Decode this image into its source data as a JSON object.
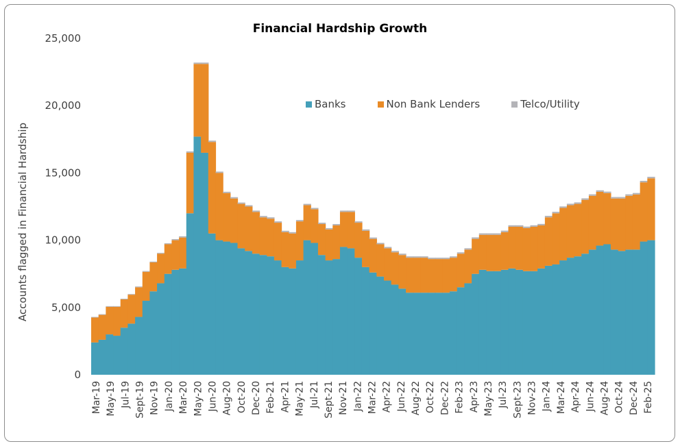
{
  "chart_data": {
    "type": "area",
    "stacked": true,
    "title": "Financial Hardship Growth",
    "xlabel": "",
    "ylabel": "Accounts flagged in Financial Hardship",
    "ylim": [
      0,
      25000
    ],
    "yticks": [
      0,
      5000,
      10000,
      15000,
      20000,
      25000
    ],
    "ytick_labels": [
      "0",
      "5,000",
      "10,000",
      "15,000",
      "20,000",
      "25,000"
    ],
    "xtick_labels": [
      "Mar-19",
      "May-19",
      "Jul-19",
      "Sept-19",
      "Nov-19",
      "Jan-20",
      "Mar-20",
      "May-20",
      "Jun-20",
      "Aug-20",
      "Oct-20",
      "Dec-20",
      "Feb-21",
      "Apr-21",
      "May-21",
      "Jul-21",
      "Sept-21",
      "Nov-21",
      "Jan-22",
      "Mar-22",
      "Apr-22",
      "Jun-22",
      "Aug-22",
      "Oct-22",
      "Dec-22",
      "Feb-23",
      "Apr-23",
      "May-23",
      "Jul-23",
      "Sept-23",
      "Nov-23",
      "Jan-24",
      "Mar-24",
      "Apr-24",
      "Jun-24",
      "Aug-24",
      "Oct-24",
      "Dec-24",
      "Feb-25"
    ],
    "legend": {
      "position": "top-right",
      "entries": [
        "Banks",
        "Non Bank Lenders",
        "Telco/Utility"
      ]
    },
    "colors": {
      "Banks": "#449fb9",
      "Non Bank Lenders": "#e98b27",
      "Telco/Utility": "#b4b4b8"
    },
    "grid": false,
    "x": [
      "Mar-19",
      "Apr-19",
      "May-19",
      "Jun-19",
      "Jul-19",
      "Aug-19",
      "Sept-19",
      "Oct-19",
      "Nov-19",
      "Dec-19",
      "Jan-20",
      "Feb-20",
      "Mar-20",
      "Apr-20 (a)",
      "Apr-20 (b)",
      "May-20 (a)",
      "May-20 (b)",
      "May-20 (c)",
      "Jun-20 (a)",
      "Jun-20 (b)",
      "Jul-20",
      "Aug-20",
      "Sept-20",
      "Oct-20",
      "Nov-20",
      "Dec-20",
      "Jan-21",
      "Feb-21",
      "Mar-21",
      "Apr-21",
      "May-21",
      "Jun-21",
      "Jul-21",
      "Aug-21",
      "Sept-21",
      "Oct-21",
      "Nov-21",
      "Dec-21",
      "Jan-22",
      "Feb-22",
      "Mar-22",
      "Apr-22",
      "May-22",
      "Jun-22",
      "Jul-22",
      "Aug-22",
      "Sept-22",
      "Oct-22",
      "Nov-22",
      "Dec-22",
      "Jan-23",
      "Feb-23",
      "Mar-23",
      "Apr-23",
      "May-23",
      "Jun-23",
      "Jul-23",
      "Aug-23",
      "Sept-23",
      "Oct-23",
      "Nov-23",
      "Dec-23",
      "Jan-24",
      "Feb-24",
      "Mar-24",
      "Apr-24",
      "May-24",
      "Jun-24",
      "Jul-24",
      "Aug-24",
      "Sept-24",
      "Oct-24",
      "Nov-24",
      "Dec-24",
      "Jan-25",
      "Feb-25",
      "Mar-25"
    ],
    "series": [
      {
        "name": "Banks",
        "values": [
          2400,
          2600,
          3000,
          2900,
          3500,
          3800,
          4300,
          5500,
          6200,
          6800,
          7500,
          7800,
          7900,
          12000,
          17700,
          16500,
          10500,
          10000,
          9900,
          9800,
          9400,
          9200,
          9000,
          8900,
          8800,
          8500,
          8000,
          7900,
          8500,
          10000,
          9800,
          8900,
          8500,
          8600,
          9500,
          9400,
          8700,
          8000,
          7600,
          7300,
          7000,
          6700,
          6400,
          6100,
          6100,
          6100,
          6100,
          6100,
          6100,
          6200,
          6500,
          6800,
          7500,
          7800,
          7700,
          7700,
          7800,
          7900,
          7800,
          7700,
          7700,
          7900,
          8100,
          8200,
          8500,
          8700,
          8800,
          9000,
          9300,
          9600,
          9700,
          9300,
          9200,
          9300,
          9300,
          9900,
          10000
        ]
      },
      {
        "name": "Non Bank Lenders",
        "values": [
          1850,
          1850,
          2050,
          2150,
          2100,
          2150,
          2200,
          2150,
          2150,
          2200,
          2200,
          2200,
          2300,
          4500,
          5400,
          6600,
          6800,
          5000,
          3600,
          3300,
          3300,
          3300,
          3100,
          2800,
          2800,
          2800,
          2600,
          2600,
          2900,
          2600,
          2500,
          2300,
          2300,
          2500,
          2600,
          2700,
          2600,
          2700,
          2500,
          2400,
          2400,
          2400,
          2500,
          2600,
          2600,
          2600,
          2500,
          2500,
          2500,
          2500,
          2500,
          2500,
          2600,
          2600,
          2700,
          2700,
          2800,
          3100,
          3200,
          3200,
          3300,
          3200,
          3600,
          3800,
          3900,
          3900,
          3900,
          4000,
          4000,
          4000,
          3800,
          3800,
          3900,
          4000,
          4100,
          4400,
          4600
        ]
      },
      {
        "name": "Telco/Utility",
        "values": [
          50,
          50,
          50,
          50,
          50,
          50,
          60,
          60,
          60,
          60,
          70,
          80,
          90,
          100,
          100,
          100,
          100,
          100,
          100,
          100,
          100,
          100,
          100,
          100,
          100,
          100,
          100,
          100,
          100,
          100,
          100,
          100,
          100,
          100,
          100,
          100,
          100,
          100,
          100,
          100,
          100,
          100,
          100,
          100,
          100,
          100,
          100,
          100,
          100,
          100,
          100,
          100,
          110,
          110,
          110,
          110,
          110,
          110,
          110,
          110,
          110,
          110,
          110,
          110,
          110,
          110,
          110,
          110,
          110,
          110,
          110,
          110,
          110,
          110,
          110,
          110,
          110
        ]
      }
    ]
  }
}
